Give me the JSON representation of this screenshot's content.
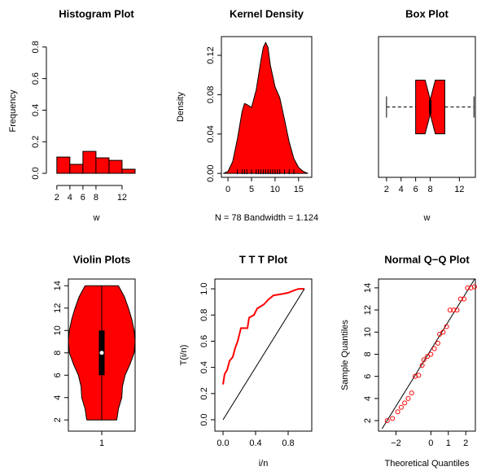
{
  "chart_data": [
    {
      "type": "histogram",
      "title": "Histogram Plot",
      "xlabel": "w",
      "ylabel": "Frequency",
      "bins": [
        2,
        4,
        6,
        8,
        10,
        12,
        14
      ],
      "values": [
        0.103,
        0.057,
        0.139,
        0.098,
        0.082,
        0.026
      ],
      "color": "#ff0000",
      "xlim": [
        0.4,
        15.75
      ],
      "ylim": [
        -0.077,
        0.866
      ],
      "xticks": [
        2,
        4,
        6,
        8,
        12
      ],
      "yticks": [
        {
          "value": 0,
          "label": "0.0"
        },
        {
          "value": 0.2,
          "label": "0.2"
        },
        {
          "value": 0.4,
          "label": "0.4"
        },
        {
          "value": 0.6,
          "label": "0.6"
        },
        {
          "value": 0.8,
          "label": "0.8"
        }
      ]
    },
    {
      "type": "density",
      "title": "Kernel Density",
      "xlabel": "N = 78   Bandwidth = 1.124",
      "ylabel": "Density",
      "x": [
        -1,
        0,
        1,
        2,
        3,
        3.5,
        4,
        5,
        6,
        7,
        7.5,
        8,
        8.5,
        9,
        10,
        11,
        12,
        13,
        14,
        15,
        16,
        17
      ],
      "values": [
        0,
        0.002,
        0.012,
        0.035,
        0.063,
        0.071,
        0.07,
        0.067,
        0.085,
        0.115,
        0.128,
        0.133,
        0.128,
        0.11,
        0.088,
        0.077,
        0.055,
        0.032,
        0.015,
        0.006,
        0.002,
        0
      ],
      "rug": [
        2,
        3,
        3.5,
        4,
        5,
        6,
        6.5,
        7,
        7.5,
        8,
        8.5,
        9,
        9.5,
        10,
        10.5,
        11,
        12,
        13,
        14
      ],
      "color": "#ff0000",
      "xlim": [
        -1.4,
        17.8
      ],
      "ylim": [
        -0.004,
        0.139
      ],
      "xticks": [
        0,
        5,
        10,
        15
      ],
      "yticks": [
        {
          "value": 0,
          "label": "0.00"
        },
        {
          "value": 0.04,
          "label": "0.04"
        },
        {
          "value": 0.08,
          "label": "0.08"
        },
        {
          "value": 0.12,
          "label": "0.12"
        }
      ]
    },
    {
      "type": "box",
      "title": "Box Plot",
      "xlabel": "w",
      "min": 2,
      "q1": 6,
      "median": 8,
      "q3": 10,
      "max": 14,
      "notch": [
        7.3,
        8.7
      ],
      "color": "#ff0000",
      "xlim": [
        0.9,
        14.2
      ],
      "xticks": [
        2,
        4,
        6,
        8,
        12
      ]
    },
    {
      "type": "violin",
      "title": "Violin Plots",
      "categories": [
        "1"
      ],
      "y": [
        2,
        3,
        4,
        5,
        6,
        7,
        8,
        9,
        10,
        11,
        12,
        13,
        14
      ],
      "density": [
        0.45,
        0.5,
        0.6,
        0.62,
        0.7,
        0.85,
        0.97,
        1.0,
        0.97,
        0.9,
        0.8,
        0.68,
        0.5
      ],
      "min": 2,
      "q1": 6,
      "median": 8,
      "q3": 10,
      "max": 14,
      "color": "#ff0000",
      "ylim": [
        1.0,
        14.6
      ],
      "yticks": [
        2,
        4,
        6,
        8,
        10,
        12,
        14
      ]
    },
    {
      "type": "line",
      "title": "T T T Plot",
      "xlabel": "i/n",
      "ylabel": "T(i/n)",
      "series": [
        {
          "color": "#ff0000",
          "x": [
            0,
            0.02,
            0.05,
            0.08,
            0.12,
            0.15,
            0.18,
            0.22,
            0.3,
            0.32,
            0.38,
            0.42,
            0.5,
            0.56,
            0.62,
            0.72,
            0.8,
            0.88,
            0.93,
            1
          ],
          "values": [
            0.27,
            0.35,
            0.38,
            0.45,
            0.48,
            0.55,
            0.6,
            0.7,
            0.7,
            0.78,
            0.8,
            0.85,
            0.88,
            0.92,
            0.95,
            0.96,
            0.97,
            0.99,
            1.0,
            1.0
          ]
        },
        {
          "color": "#000000",
          "x": [
            0,
            1
          ],
          "values": [
            0,
            1
          ]
        }
      ],
      "xlim": [
        -0.1,
        1.09
      ],
      "ylim": [
        -0.087,
        1.075
      ],
      "xticks": [
        {
          "value": 0,
          "label": "0.0"
        },
        {
          "value": 0.4,
          "label": "0.4"
        },
        {
          "value": 0.8,
          "label": "0.8"
        }
      ],
      "yticks": [
        {
          "value": 0,
          "label": "0.0"
        },
        {
          "value": 0.2,
          "label": "0.2"
        },
        {
          "value": 0.4,
          "label": "0.4"
        },
        {
          "value": 0.6,
          "label": "0.6"
        },
        {
          "value": 0.8,
          "label": "0.8"
        },
        {
          "value": 1,
          "label": "1.0"
        }
      ]
    },
    {
      "type": "scatter",
      "title": "Normal Q−Q Plot",
      "xlabel": "Theoretical Quantiles",
      "ylabel": "Sample Quantiles",
      "x": [
        -2.5,
        -2.2,
        -1.9,
        -1.7,
        -1.5,
        -1.3,
        -1.1,
        -0.9,
        -0.7,
        -0.5,
        -0.4,
        -0.2,
        0,
        0.2,
        0.4,
        0.5,
        0.7,
        0.9,
        1.1,
        1.3,
        1.5,
        1.7,
        1.9,
        2.1,
        2.3,
        2.5
      ],
      "values": [
        2,
        2.2,
        2.8,
        3.2,
        3.6,
        4,
        4.5,
        6,
        6.1,
        7,
        7.5,
        7.8,
        8,
        8.5,
        9,
        9.8,
        10,
        10.5,
        12,
        12,
        12,
        13,
        13,
        14,
        14,
        14.1
      ],
      "color": "#ff0000",
      "line": {
        "color": "#000000",
        "x": [
          -2.8,
          2.6
        ],
        "values": [
          1.26,
          15.03
        ]
      },
      "xlim": [
        -3.0,
        2.55
      ],
      "ylim": [
        1.05,
        14.8
      ],
      "xticks": [
        {
          "value": -2,
          "label": "−2"
        },
        0,
        1,
        2
      ],
      "yticks": [
        2,
        4,
        6,
        8,
        10,
        12,
        14
      ]
    }
  ]
}
